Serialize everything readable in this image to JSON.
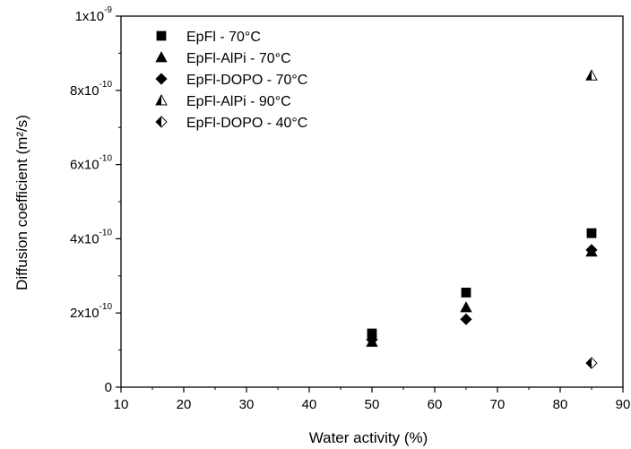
{
  "chart_data": {
    "type": "scatter",
    "xlabel": "Water activity (%)",
    "ylabel": "Diffusion coefficient (m²/s)",
    "xlim": [
      10,
      90
    ],
    "ylim": [
      0,
      1e-09
    ],
    "x_ticks": [
      10,
      20,
      30,
      40,
      50,
      60,
      70,
      80,
      90
    ],
    "x_tick_labels": [
      "10",
      "20",
      "30",
      "40",
      "50",
      "60",
      "70",
      "80",
      "90"
    ],
    "y_ticks": [
      0,
      2e-10,
      4e-10,
      6e-10,
      8e-10,
      1e-09
    ],
    "y_tick_labels": [
      {
        "mantissa": "0",
        "exponent": ""
      },
      {
        "mantissa": "2x10",
        "exponent": "-10"
      },
      {
        "mantissa": "4x10",
        "exponent": "-10"
      },
      {
        "mantissa": "6x10",
        "exponent": "-10"
      },
      {
        "mantissa": "8x10",
        "exponent": "-10"
      },
      {
        "mantissa": "1x10",
        "exponent": "-9"
      }
    ],
    "grid": false,
    "legend_position": "top-left",
    "series": [
      {
        "name": "EpFl - 70°C",
        "marker": "square",
        "fill": "solid",
        "points": [
          {
            "x": 50,
            "y": 1.45e-10
          },
          {
            "x": 65,
            "y": 2.55e-10
          },
          {
            "x": 85,
            "y": 4.15e-10
          }
        ]
      },
      {
        "name": "EpFl-AlPi - 70°C",
        "marker": "triangle",
        "fill": "solid",
        "points": [
          {
            "x": 50,
            "y": 1.22e-10
          },
          {
            "x": 65,
            "y": 2.15e-10
          },
          {
            "x": 85,
            "y": 3.65e-10
          }
        ]
      },
      {
        "name": "EpFl-DOPO - 70°C",
        "marker": "diamond",
        "fill": "solid",
        "points": [
          {
            "x": 50,
            "y": 1.28e-10
          },
          {
            "x": 65,
            "y": 1.83e-10
          },
          {
            "x": 85,
            "y": 3.7e-10
          }
        ]
      },
      {
        "name": "EpFl-AlPi - 90°C",
        "marker": "triangle",
        "fill": "half",
        "points": [
          {
            "x": 85,
            "y": 8.4e-10
          }
        ]
      },
      {
        "name": "EpFl-DOPO - 40°C",
        "marker": "diamond",
        "fill": "half",
        "points": [
          {
            "x": 85,
            "y": 6.5e-11
          }
        ]
      }
    ]
  }
}
